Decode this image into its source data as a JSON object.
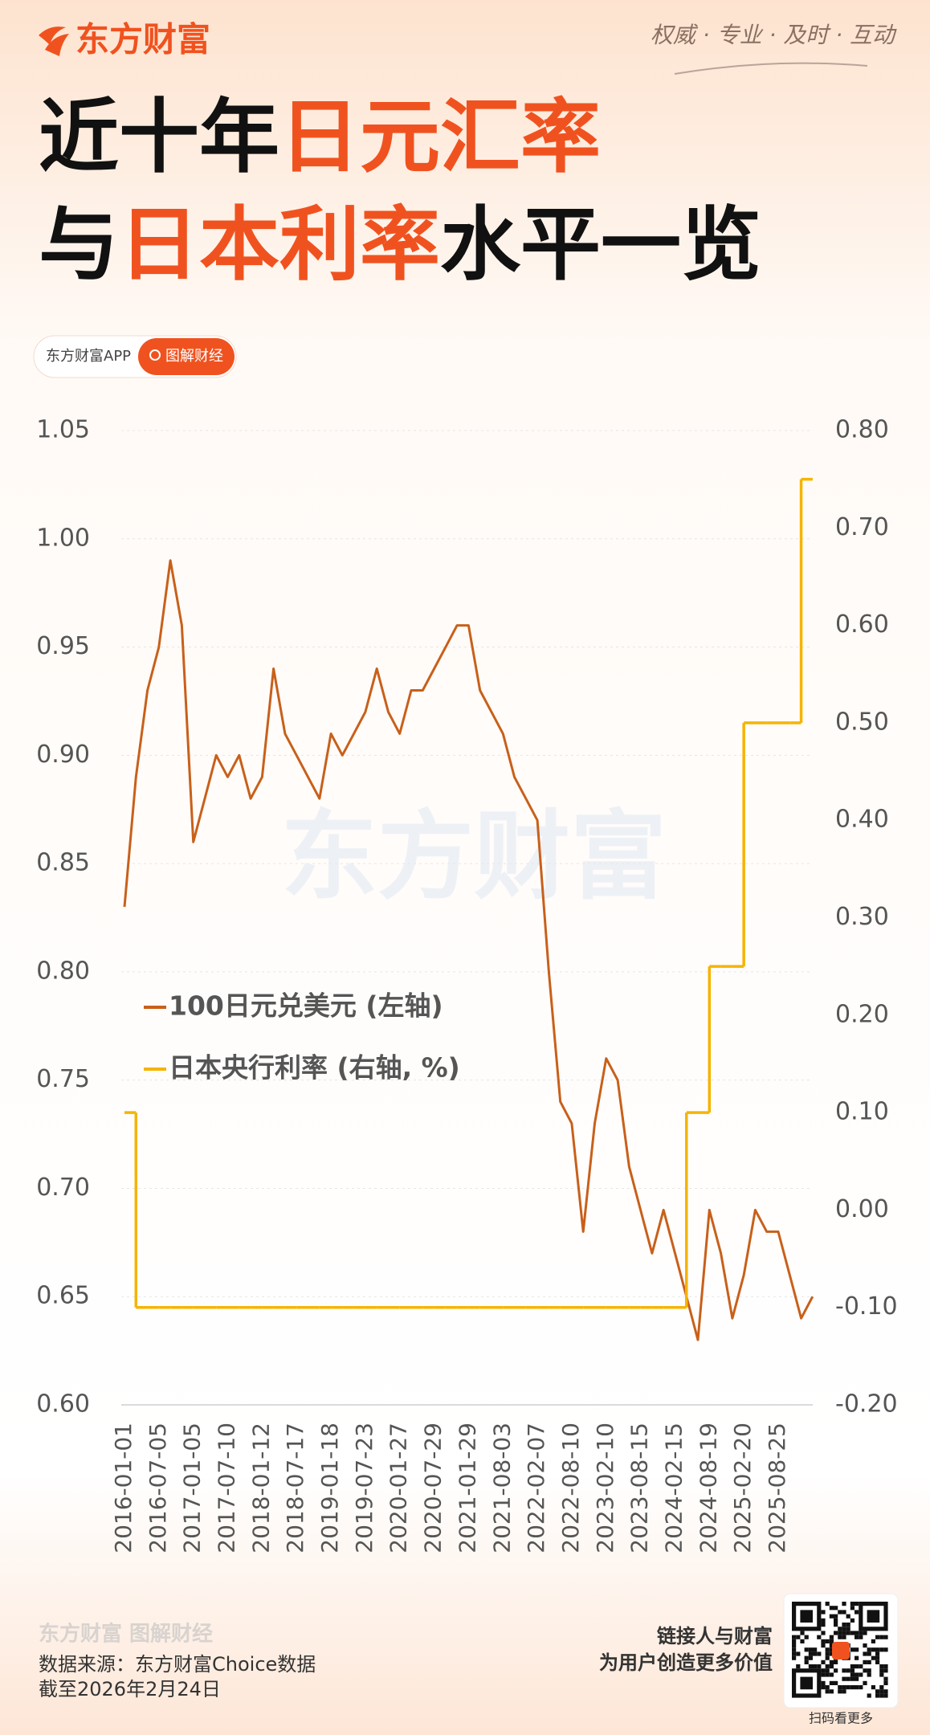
{
  "header": {
    "logo": "东方财富",
    "slogan": "权威 · 专业 · 及时 · 互动",
    "title_lines": [
      [
        "近十年",
        "日元汇率"
      ],
      [
        "与",
        "日本利率",
        "水平一览"
      ]
    ],
    "tags": [
      "东方财富APP",
      "图解财经"
    ]
  },
  "chart_data": {
    "type": "line",
    "watermark": "东方财富",
    "categories": [
      "2016-01-01",
      null,
      null,
      "2016-07-05",
      null,
      null,
      "2017-01-05",
      null,
      null,
      "2017-07-10",
      null,
      null,
      "2018-01-12",
      null,
      null,
      "2018-07-17",
      null,
      null,
      "2019-01-18",
      null,
      null,
      "2019-07-23",
      null,
      null,
      "2020-01-27",
      null,
      null,
      "2020-07-29",
      null,
      null,
      "2021-01-29",
      null,
      null,
      "2021-08-03",
      null,
      null,
      "2022-02-07",
      null,
      null,
      "2022-08-10",
      null,
      null,
      "2023-02-10",
      null,
      null,
      "2023-08-15",
      null,
      null,
      "2024-02-15",
      null,
      null,
      "2024-08-19",
      null,
      null,
      "2025-02-20",
      null,
      null,
      "2025-08-25",
      null,
      null,
      null
    ],
    "series": [
      {
        "name": "100日元兑美元 (左轴)",
        "color": "#c8601a",
        "axis": "y",
        "values": [
          0.83,
          0.89,
          0.93,
          0.95,
          0.99,
          0.96,
          0.86,
          0.88,
          0.9,
          0.89,
          0.9,
          0.88,
          0.89,
          0.94,
          0.91,
          0.9,
          0.89,
          0.88,
          0.91,
          0.9,
          0.91,
          0.92,
          0.94,
          0.92,
          0.91,
          0.93,
          0.93,
          0.94,
          0.95,
          0.96,
          0.96,
          0.93,
          0.92,
          0.91,
          0.89,
          0.88,
          0.87,
          0.8,
          0.74,
          0.73,
          0.68,
          0.73,
          0.76,
          0.75,
          0.71,
          0.69,
          0.67,
          0.69,
          0.67,
          0.65,
          0.63,
          0.69,
          0.67,
          0.64,
          0.66,
          0.69,
          0.68,
          0.68,
          0.66,
          0.64,
          0.65
        ]
      },
      {
        "name": "日本央行利率 (右轴, %)",
        "color": "#f5b400",
        "axis": "y2",
        "drawstyle": "steps-post",
        "values": [
          0.1,
          -0.1,
          -0.1,
          -0.1,
          -0.1,
          -0.1,
          -0.1,
          -0.1,
          -0.1,
          -0.1,
          -0.1,
          -0.1,
          -0.1,
          -0.1,
          -0.1,
          -0.1,
          -0.1,
          -0.1,
          -0.1,
          -0.1,
          -0.1,
          -0.1,
          -0.1,
          -0.1,
          -0.1,
          -0.1,
          -0.1,
          -0.1,
          -0.1,
          -0.1,
          -0.1,
          -0.1,
          -0.1,
          -0.1,
          -0.1,
          -0.1,
          -0.1,
          -0.1,
          -0.1,
          -0.1,
          -0.1,
          -0.1,
          -0.1,
          -0.1,
          -0.1,
          -0.1,
          -0.1,
          -0.1,
          -0.1,
          0.1,
          0.1,
          0.25,
          0.25,
          0.25,
          0.5,
          0.5,
          0.5,
          0.5,
          0.5,
          0.75,
          0.75
        ]
      }
    ],
    "ylim": [
      0.6,
      1.05
    ],
    "yticks": [
      {
        "value": 0.6,
        "label": "0.60"
      },
      0.65,
      {
        "value": 0.7,
        "label": "0.70"
      },
      0.75,
      {
        "value": 0.8,
        "label": "0.80"
      },
      0.85,
      {
        "value": 0.9,
        "label": "0.90"
      },
      0.95,
      {
        "value": 1,
        "label": "1.00"
      },
      1.05
    ],
    "y2lim": [
      -0.2,
      0.8
    ],
    "y2ticks": [
      {
        "value": -0.2,
        "label": "-0.20"
      },
      {
        "value": -0.1,
        "label": "-0.10"
      },
      {
        "value": 0,
        "label": "0.00"
      },
      {
        "value": 0.1,
        "label": "0.10"
      },
      {
        "value": 0.2,
        "label": "0.20"
      },
      {
        "value": 0.3,
        "label": "0.30"
      },
      {
        "value": 0.4,
        "label": "0.40"
      },
      {
        "value": 0.5,
        "label": "0.50"
      },
      {
        "value": 0.6,
        "label": "0.60"
      },
      {
        "value": 0.7,
        "label": "0.70"
      },
      {
        "value": 0.8,
        "label": "0.80"
      }
    ],
    "grid": true,
    "legend": "center-left"
  },
  "footer": {
    "brand": "东方财富 图解财经",
    "source": "数据来源：东方财富Choice数据",
    "date": "截至2026年2月24日",
    "slogan_lines": [
      "链接人与财富",
      "为用户创造更多价值"
    ],
    "qr_caption": "扫码看更多"
  }
}
